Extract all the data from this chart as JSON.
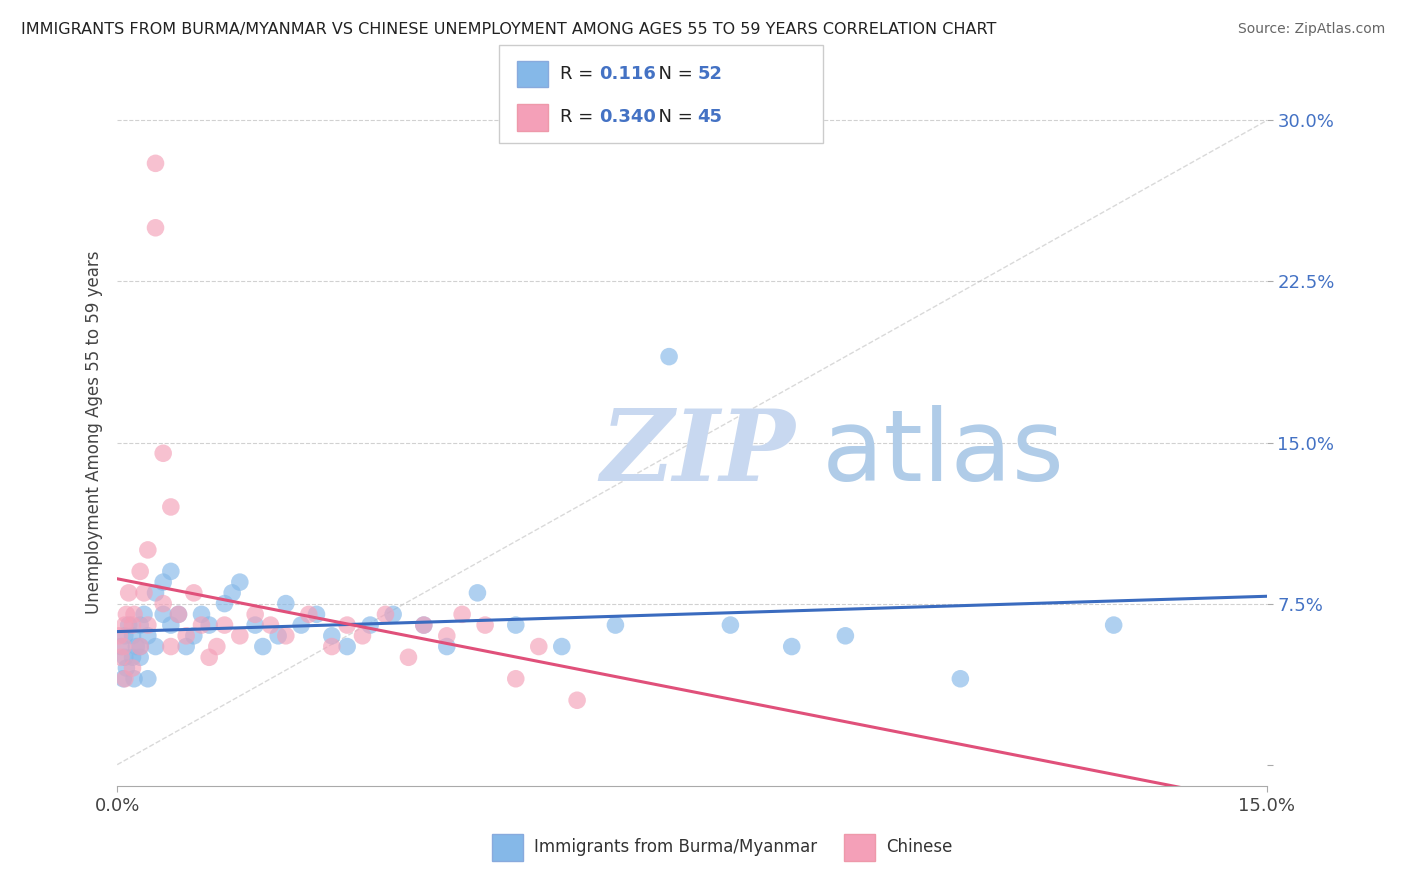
{
  "title": "IMMIGRANTS FROM BURMA/MYANMAR VS CHINESE UNEMPLOYMENT AMONG AGES 55 TO 59 YEARS CORRELATION CHART",
  "source": "Source: ZipAtlas.com",
  "ylabel": "Unemployment Among Ages 55 to 59 years",
  "xlim": [
    0.0,
    0.15
  ],
  "ylim": [
    -0.01,
    0.32
  ],
  "yticks": [
    0.0,
    0.075,
    0.15,
    0.225,
    0.3
  ],
  "ytick_labels": [
    "",
    "7.5%",
    "15.0%",
    "22.5%",
    "30.0%"
  ],
  "xticks": [
    0.0,
    0.15
  ],
  "xtick_labels": [
    "0.0%",
    "15.0%"
  ],
  "grid_color": "#cccccc",
  "background_color": "#ffffff",
  "series": [
    {
      "name": "Immigrants from Burma/Myanmar",
      "R": 0.116,
      "N": 52,
      "color": "#85b8e8",
      "line_color": "#3a6bbf",
      "x": [
        0.0005,
        0.0008,
        0.001,
        0.001,
        0.0012,
        0.0015,
        0.002,
        0.002,
        0.0022,
        0.0025,
        0.003,
        0.003,
        0.003,
        0.0035,
        0.004,
        0.004,
        0.005,
        0.005,
        0.006,
        0.006,
        0.007,
        0.007,
        0.008,
        0.009,
        0.01,
        0.011,
        0.012,
        0.014,
        0.015,
        0.016,
        0.018,
        0.019,
        0.021,
        0.022,
        0.024,
        0.026,
        0.028,
        0.03,
        0.033,
        0.036,
        0.04,
        0.043,
        0.047,
        0.052,
        0.058,
        0.065,
        0.072,
        0.08,
        0.088,
        0.095,
        0.11,
        0.13
      ],
      "y": [
        0.055,
        0.04,
        0.06,
        0.05,
        0.045,
        0.065,
        0.05,
        0.06,
        0.04,
        0.055,
        0.055,
        0.065,
        0.05,
        0.07,
        0.06,
        0.04,
        0.08,
        0.055,
        0.07,
        0.085,
        0.065,
        0.09,
        0.07,
        0.055,
        0.06,
        0.07,
        0.065,
        0.075,
        0.08,
        0.085,
        0.065,
        0.055,
        0.06,
        0.075,
        0.065,
        0.07,
        0.06,
        0.055,
        0.065,
        0.07,
        0.065,
        0.055,
        0.08,
        0.065,
        0.055,
        0.065,
        0.19,
        0.065,
        0.055,
        0.06,
        0.04,
        0.065
      ]
    },
    {
      "name": "Chinese",
      "R": 0.34,
      "N": 45,
      "color": "#f4a0b8",
      "line_color": "#e0507a",
      "x": [
        0.0003,
        0.0005,
        0.0008,
        0.001,
        0.001,
        0.0012,
        0.0015,
        0.002,
        0.002,
        0.0022,
        0.003,
        0.003,
        0.0035,
        0.004,
        0.004,
        0.005,
        0.005,
        0.006,
        0.006,
        0.007,
        0.007,
        0.008,
        0.009,
        0.01,
        0.011,
        0.012,
        0.013,
        0.014,
        0.016,
        0.018,
        0.02,
        0.022,
        0.025,
        0.028,
        0.03,
        0.032,
        0.035,
        0.038,
        0.04,
        0.043,
        0.045,
        0.048,
        0.052,
        0.055,
        0.06
      ],
      "y": [
        0.06,
        0.05,
        0.055,
        0.065,
        0.04,
        0.07,
        0.08,
        0.065,
        0.045,
        0.07,
        0.09,
        0.055,
        0.08,
        0.1,
        0.065,
        0.28,
        0.25,
        0.145,
        0.075,
        0.12,
        0.055,
        0.07,
        0.06,
        0.08,
        0.065,
        0.05,
        0.055,
        0.065,
        0.06,
        0.07,
        0.065,
        0.06,
        0.07,
        0.055,
        0.065,
        0.06,
        0.07,
        0.05,
        0.065,
        0.06,
        0.07,
        0.065,
        0.04,
        0.055,
        0.03
      ]
    }
  ],
  "watermark_zip_color": "#c8d8f0",
  "watermark_atlas_color": "#b0cce8",
  "ref_line_color": "#c0c0c0"
}
